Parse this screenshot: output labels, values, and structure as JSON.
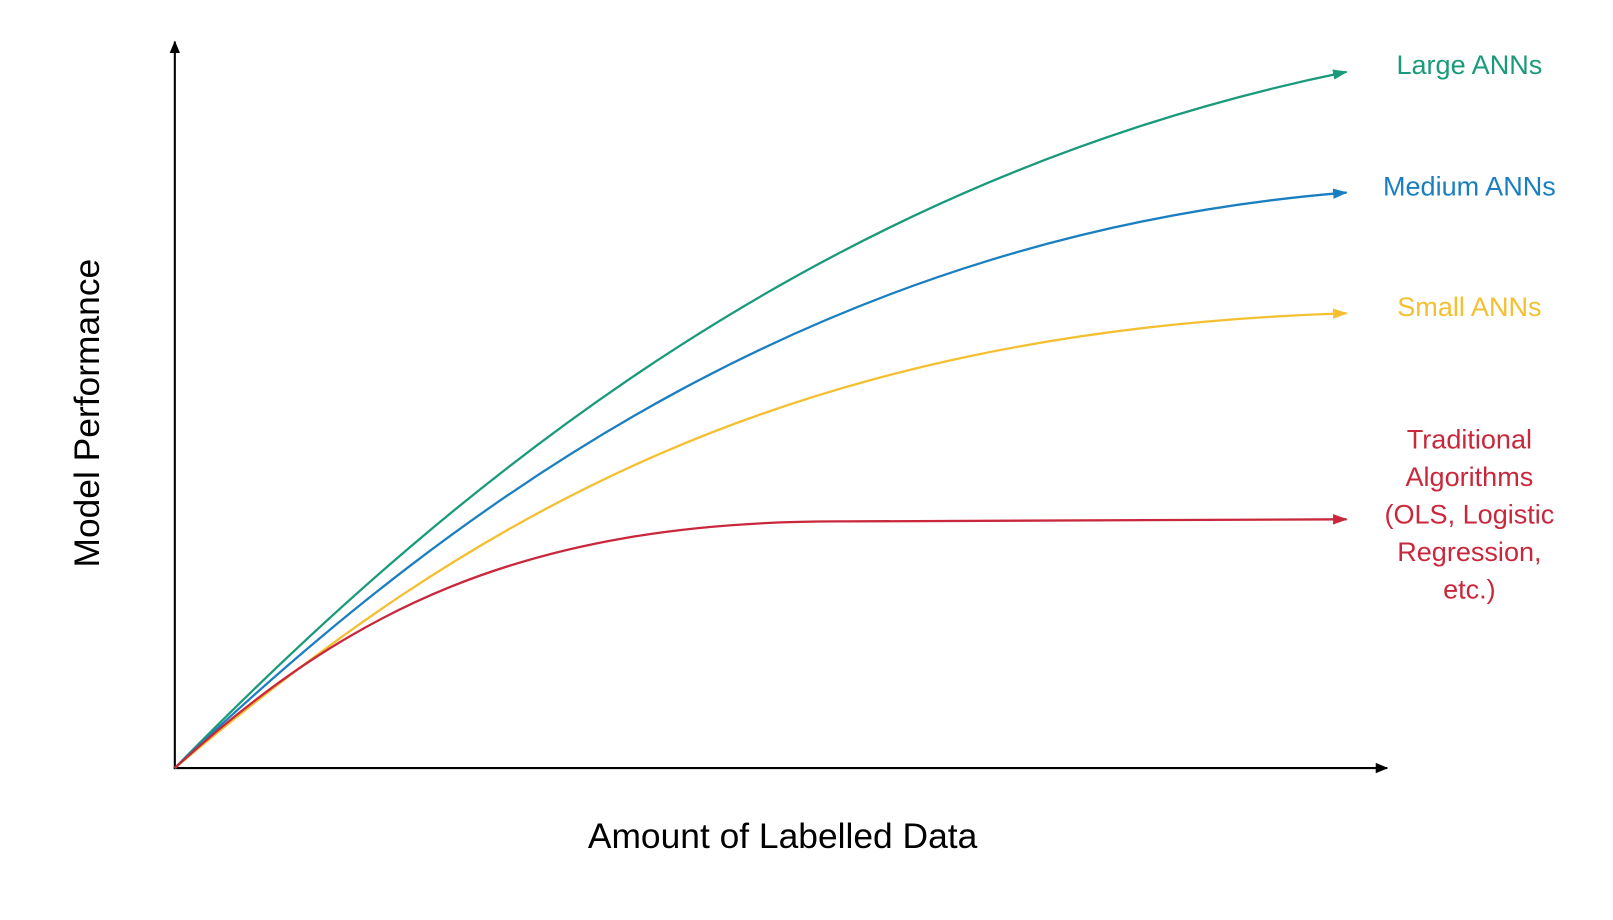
{
  "axes": {
    "x_label": "Amount of Labelled Data",
    "y_label": "Model Performance"
  },
  "curves": [
    {
      "label": "Large ANNs"
    },
    {
      "label": "Medium ANNs"
    },
    {
      "label": "Small ANNs"
    },
    {
      "label_lines": [
        "Traditional",
        "Algorithms",
        "(OLS, Logistic",
        "Regression,",
        "etc.)"
      ]
    }
  ]
}
